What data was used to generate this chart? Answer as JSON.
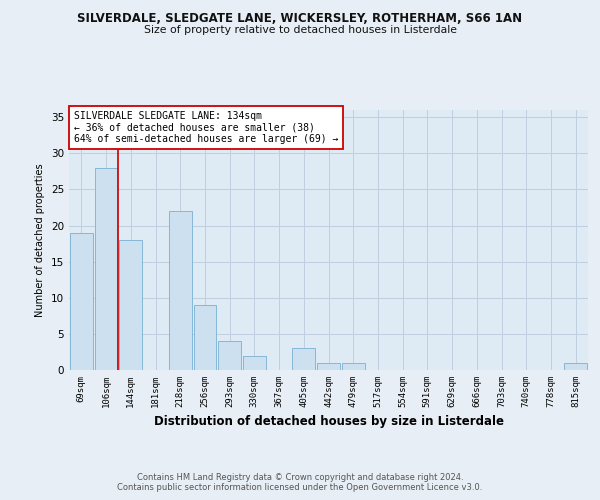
{
  "title": "SILVERDALE, SLEDGATE LANE, WICKERSLEY, ROTHERHAM, S66 1AN",
  "subtitle": "Size of property relative to detached houses in Listerdale",
  "xlabel": "Distribution of detached houses by size in Listerdale",
  "ylabel": "Number of detached properties",
  "categories": [
    "69sqm",
    "106sqm",
    "144sqm",
    "181sqm",
    "218sqm",
    "256sqm",
    "293sqm",
    "330sqm",
    "367sqm",
    "405sqm",
    "442sqm",
    "479sqm",
    "517sqm",
    "554sqm",
    "591sqm",
    "629sqm",
    "666sqm",
    "703sqm",
    "740sqm",
    "778sqm",
    "815sqm"
  ],
  "values": [
    19,
    28,
    18,
    0,
    22,
    9,
    4,
    2,
    0,
    3,
    1,
    1,
    0,
    0,
    0,
    0,
    0,
    0,
    0,
    0,
    1
  ],
  "bar_color": "#cce0f0",
  "bar_edge_color": "#7ab0d4",
  "vline_color": "#cc0000",
  "annotation_text": "SILVERDALE SLEDGATE LANE: 134sqm\n← 36% of detached houses are smaller (38)\n64% of semi-detached houses are larger (69) →",
  "annotation_box_color": "#ffffff",
  "annotation_box_edge": "#cc0000",
  "ylim": [
    0,
    36
  ],
  "yticks": [
    0,
    5,
    10,
    15,
    20,
    25,
    30,
    35
  ],
  "footer1": "Contains HM Land Registry data © Crown copyright and database right 2024.",
  "footer2": "Contains public sector information licensed under the Open Government Licence v3.0.",
  "background_color": "#e8eef5",
  "plot_bg_color": "#deeaf4",
  "grid_color": "#c0cfe0"
}
